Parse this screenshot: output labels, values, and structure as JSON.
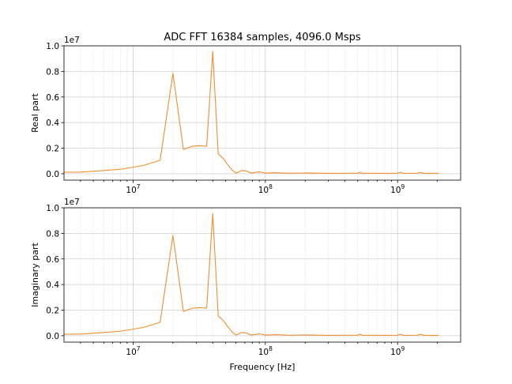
{
  "chart_data": {
    "type": "line",
    "title": "ADC FFT 16384 samples, 4096.0 Msps",
    "xlabel": "Frequency [Hz]",
    "xscale": "log",
    "xlim": [
      3000000,
      3000000000
    ],
    "x_ticks": [
      10000000,
      100000000,
      1000000000
    ],
    "x_tick_labels": [
      {
        "base": "10",
        "exp": "7"
      },
      {
        "base": "10",
        "exp": "8"
      },
      {
        "base": "10",
        "exp": "9"
      }
    ],
    "ylim": [
      -0.05,
      1.0
    ],
    "y_ticks": [
      0.0,
      0.2,
      0.4,
      0.6,
      0.8,
      1.0
    ],
    "y_tick_labels": [
      "0.0",
      "0.2",
      "0.4",
      "0.6",
      "0.8",
      "1.0"
    ],
    "y_scale_label": "1e7",
    "grid": true,
    "color": "#f28e2b",
    "panels": [
      {
        "ylabel": "Real part",
        "series": [
          {
            "name": "real",
            "x": [
              3000000,
              4000000,
              6000000,
              8000000,
              12000000,
              16000000,
              20000000,
              24000000,
              28000000,
              32000000,
              36000000,
              40000000,
              44000000,
              48000000,
              52000000,
              56000000,
              60000000,
              66000000,
              72000000,
              78000000,
              84000000,
              90000000,
              100000000,
              120000000,
              150000000,
              200000000,
              300000000,
              400000000,
              500000000,
              520000000,
              540000000,
              600000000,
              800000000,
              1000000000,
              1050000000,
              1100000000,
              1400000000,
              1500000000,
              1600000000,
              2048000000
            ],
            "values": [
              0.012,
              0.013,
              0.025,
              0.035,
              0.065,
              0.105,
              0.785,
              0.19,
              0.215,
              0.22,
              0.215,
              0.955,
              0.155,
              0.12,
              0.07,
              0.03,
              0.005,
              0.025,
              0.022,
              0.005,
              0.01,
              0.015,
              0.005,
              0.008,
              0.004,
              0.006,
              0.003,
              0.004,
              0.004,
              0.012,
              0.003,
              0.004,
              0.003,
              0.004,
              0.012,
              0.003,
              0.004,
              0.01,
              0.003,
              0.003
            ]
          }
        ]
      },
      {
        "ylabel": "Imaginary part",
        "series": [
          {
            "name": "imag",
            "x": [
              3000000,
              4000000,
              6000000,
              8000000,
              12000000,
              16000000,
              20000000,
              24000000,
              28000000,
              32000000,
              36000000,
              40000000,
              44000000,
              48000000,
              52000000,
              56000000,
              60000000,
              66000000,
              72000000,
              78000000,
              84000000,
              90000000,
              100000000,
              120000000,
              150000000,
              200000000,
              300000000,
              400000000,
              500000000,
              520000000,
              540000000,
              600000000,
              800000000,
              1000000000,
              1050000000,
              1100000000,
              1400000000,
              1500000000,
              1600000000,
              2048000000
            ],
            "values": [
              0.012,
              0.013,
              0.025,
              0.035,
              0.065,
              0.105,
              0.785,
              0.19,
              0.215,
              0.22,
              0.215,
              0.955,
              0.155,
              0.12,
              0.07,
              0.03,
              0.005,
              0.025,
              0.022,
              0.005,
              0.01,
              0.015,
              0.005,
              0.008,
              0.004,
              0.006,
              0.003,
              0.004,
              0.004,
              0.012,
              0.003,
              0.004,
              0.003,
              0.004,
              0.012,
              0.003,
              0.004,
              0.01,
              0.003,
              0.003
            ]
          }
        ]
      }
    ]
  }
}
